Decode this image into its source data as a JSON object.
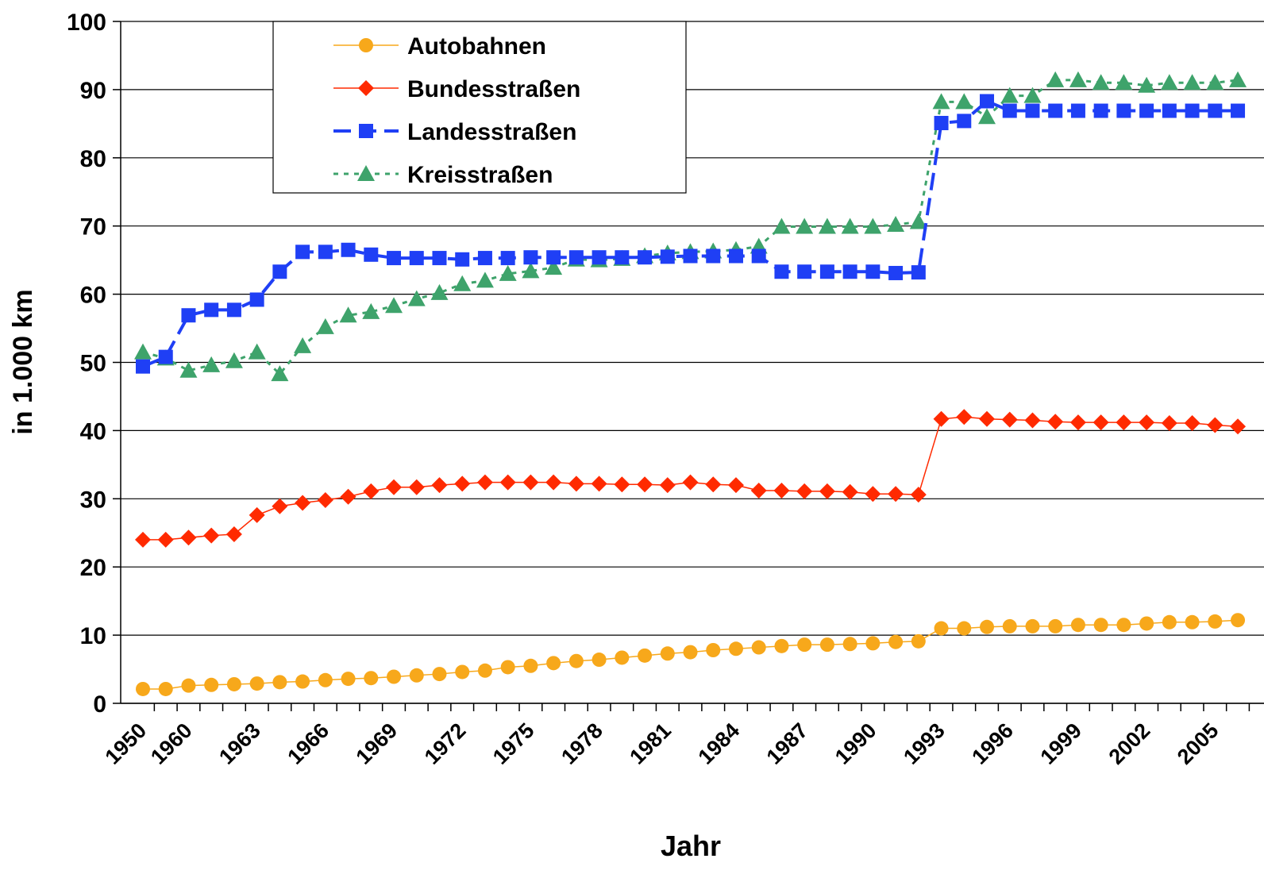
{
  "chart_data": {
    "type": "line",
    "x_label": "Jahr",
    "y_label": "in 1.000 km",
    "categories": [
      "1950",
      null,
      "1960",
      null,
      null,
      "1963",
      null,
      null,
      "1966",
      null,
      null,
      "1969",
      null,
      null,
      "1972",
      null,
      null,
      "1975",
      null,
      null,
      "1978",
      null,
      null,
      "1981",
      null,
      null,
      "1984",
      null,
      null,
      "1987",
      null,
      null,
      "1990",
      null,
      null,
      "1993",
      null,
      null,
      "1996",
      null,
      null,
      "1999",
      null,
      null,
      "2002",
      null,
      null,
      "2005",
      null
    ],
    "ylim": [
      0,
      100
    ],
    "yticks": [
      0,
      10,
      20,
      30,
      40,
      50,
      60,
      70,
      80,
      90,
      100
    ],
    "grid": true,
    "legend": "top-left",
    "series": [
      {
        "name": "Autobahnen",
        "color": "#f7a81b",
        "marker": "circle",
        "dash": "solid",
        "values": [
          2.1,
          2.1,
          2.6,
          2.7,
          2.8,
          2.9,
          3.1,
          3.2,
          3.4,
          3.6,
          3.7,
          3.9,
          4.1,
          4.3,
          4.6,
          4.8,
          5.3,
          5.5,
          5.9,
          6.2,
          6.4,
          6.7,
          7.0,
          7.3,
          7.5,
          7.8,
          8.0,
          8.2,
          8.4,
          8.6,
          8.6,
          8.7,
          8.8,
          9.0,
          9.1,
          11.0,
          11.0,
          11.2,
          11.3,
          11.3,
          11.3,
          11.5,
          11.5,
          11.5,
          11.7,
          11.9,
          11.9,
          12.0,
          12.2
        ]
      },
      {
        "name": "Bundesstraßen",
        "color": "#ff2a00",
        "marker": "diamond",
        "dash": "solid",
        "values": [
          24.0,
          24.0,
          24.3,
          24.6,
          24.8,
          27.6,
          28.9,
          29.4,
          29.8,
          30.3,
          31.1,
          31.7,
          31.7,
          32.0,
          32.2,
          32.4,
          32.4,
          32.4,
          32.4,
          32.2,
          32.2,
          32.1,
          32.1,
          32.0,
          32.4,
          32.1,
          32.0,
          31.2,
          31.2,
          31.1,
          31.1,
          31.0,
          30.7,
          30.7,
          30.6,
          41.7,
          42.0,
          41.7,
          41.6,
          41.5,
          41.3,
          41.2,
          41.2,
          41.2,
          41.2,
          41.1,
          41.1,
          40.8,
          40.6
        ]
      },
      {
        "name": "Landesstraßen",
        "color": "#1f3ff5",
        "marker": "square",
        "dash": "dashed",
        "values": [
          49.4,
          50.8,
          56.9,
          57.7,
          57.7,
          59.2,
          63.3,
          66.2,
          66.2,
          66.5,
          65.8,
          65.3,
          65.3,
          65.3,
          65.1,
          65.3,
          65.3,
          65.4,
          65.4,
          65.4,
          65.4,
          65.4,
          65.4,
          65.5,
          65.6,
          65.6,
          65.6,
          65.6,
          63.3,
          63.3,
          63.3,
          63.3,
          63.3,
          63.1,
          63.2,
          85.1,
          85.4,
          88.3,
          86.9,
          86.9,
          86.9,
          86.9,
          86.9,
          86.9,
          86.9,
          86.9,
          86.9,
          86.9,
          86.9
        ]
      },
      {
        "name": "Kreisstraßen",
        "color": "#3ea36b",
        "marker": "triangle",
        "dash": "dotted",
        "values": [
          51.5,
          50.6,
          48.8,
          49.6,
          50.2,
          51.5,
          48.3,
          52.4,
          55.2,
          56.9,
          57.4,
          58.3,
          59.3,
          60.2,
          61.5,
          62.0,
          63.0,
          63.4,
          63.9,
          65.1,
          65.0,
          65.2,
          65.6,
          66.0,
          66.2,
          66.3,
          66.5,
          67.0,
          69.9,
          69.9,
          69.9,
          69.9,
          69.9,
          70.2,
          70.6,
          88.2,
          88.2,
          86.0,
          89.1,
          89.1,
          91.4,
          91.4,
          91.0,
          91.0,
          90.6,
          91.0,
          91.0,
          91.0,
          91.4
        ]
      }
    ]
  }
}
